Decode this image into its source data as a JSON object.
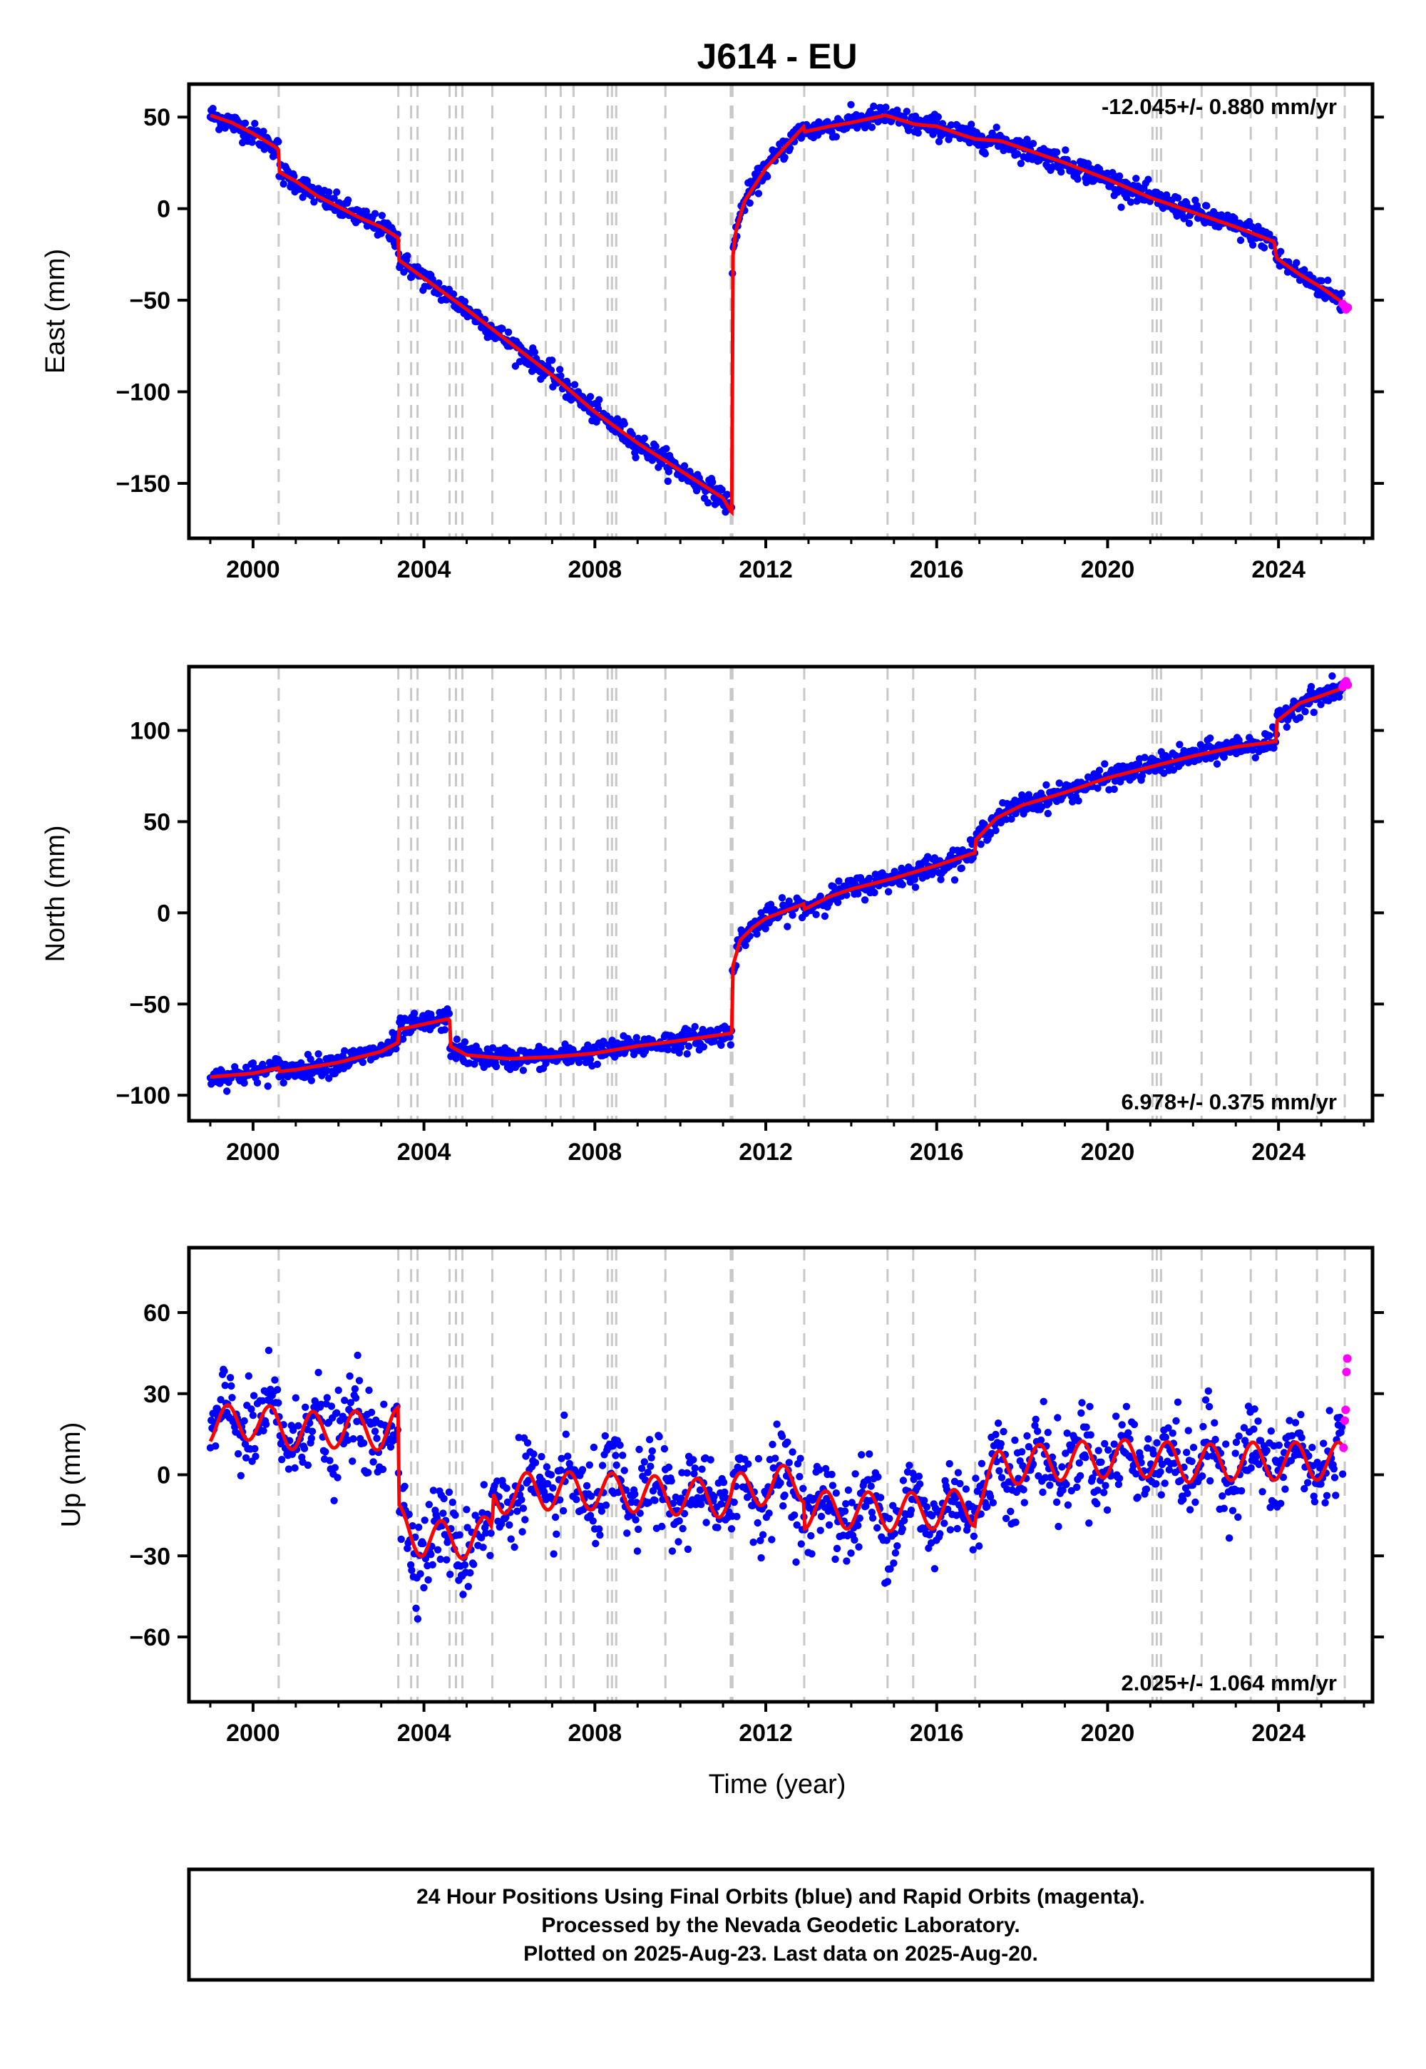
{
  "chart_data": {
    "type": "scatter",
    "title": "J614 - EU",
    "xlabel": "Time (year)",
    "xlim": [
      1998.5,
      2026.2
    ],
    "xticks": [
      2000,
      2004,
      2008,
      2012,
      2016,
      2020,
      2024
    ],
    "step_epochs": [
      2000.6,
      2003.4,
      2003.7,
      2003.85,
      2004.6,
      2004.75,
      2004.9,
      2005.6,
      2006.85,
      2007.2,
      2007.5,
      2008.3,
      2008.4,
      2008.5,
      2009.65,
      2011.18,
      2011.22,
      2012.9,
      2014.85,
      2015.45,
      2016.9,
      2021.05,
      2021.15,
      2021.25,
      2022.2,
      2023.35,
      2023.95,
      2024.9,
      2025.55
    ],
    "series_colors": {
      "final_orbits": "#0000ff",
      "rapid_orbits": "#ff00ff",
      "model": "#ff0000",
      "steps": "#c8c8c8"
    },
    "panels": [
      {
        "component": "east",
        "ylabel": "East (mm)",
        "ylim": [
          -180,
          68
        ],
        "yticks": [
          50,
          0,
          -50,
          -100,
          -150
        ],
        "rate_text": "-12.045+/- 0.880 mm/yr",
        "rate_position": "top-right",
        "noise_mm": 3,
        "seasonal_mm": 0,
        "model": {
          "x": [
            1999.0,
            1999.5,
            2000.0,
            2000.5,
            2000.6,
            2000.61,
            2001.0,
            2001.5,
            2002.0,
            2002.5,
            2003.0,
            2003.4,
            2003.41,
            2004.0,
            2005.0,
            2006.0,
            2007.0,
            2008.0,
            2009.0,
            2010.0,
            2011.0,
            2011.2,
            2011.21,
            2011.22,
            2011.3,
            2011.5,
            2012.0,
            2012.5,
            2012.9,
            2012.91,
            2013.5,
            2014.0,
            2014.8,
            2015.5,
            2016.0,
            2016.5,
            2016.9,
            2017.5,
            2018.0,
            2019.0,
            2020.0,
            2021.0,
            2022.0,
            2023.0,
            2023.9,
            2023.95,
            2024.5,
            2025.0,
            2025.6
          ],
          "y": [
            51,
            47,
            41,
            34,
            32,
            20,
            15,
            7,
            1,
            -5,
            -10,
            -16,
            -28,
            -38,
            -55,
            -73,
            -91,
            -111,
            -128,
            -143,
            -158,
            -166,
            -165,
            -28,
            -12,
            4,
            22,
            35,
            45,
            42,
            45,
            47,
            51,
            46,
            45,
            41,
            38,
            37,
            33,
            25,
            16,
            6,
            -2,
            -10,
            -18,
            -27,
            -36,
            -43,
            -53
          ]
        },
        "rapid": {
          "x": [
            2025.5,
            2025.54,
            2025.58,
            2025.62
          ],
          "y": [
            -52,
            -53,
            -55,
            -54
          ]
        }
      },
      {
        "component": "north",
        "ylabel": "North (mm)",
        "ylim": [
          -114,
          135
        ],
        "yticks": [
          100,
          50,
          0,
          -50,
          -100
        ],
        "rate_text": "6.978+/- 0.375 mm/yr",
        "rate_position": "bottom-right",
        "noise_mm": 3,
        "seasonal_mm": 0,
        "model": {
          "x": [
            1999.0,
            2000.0,
            2000.6,
            2000.61,
            2001.0,
            2002.0,
            2003.0,
            2003.4,
            2003.41,
            2004.0,
            2004.6,
            2004.61,
            2005.0,
            2006.0,
            2007.0,
            2008.0,
            2009.0,
            2010.0,
            2011.2,
            2011.21,
            2011.22,
            2011.4,
            2011.7,
            2012.0,
            2012.9,
            2012.91,
            2013.5,
            2014.0,
            2015.0,
            2016.0,
            2016.9,
            2016.91,
            2017.0,
            2017.4,
            2018.0,
            2019.0,
            2020.0,
            2021.0,
            2022.0,
            2023.0,
            2023.95,
            2023.96,
            2024.5,
            2025.0,
            2025.6
          ],
          "y": [
            -90,
            -88,
            -85,
            -87,
            -86,
            -82,
            -76,
            -71,
            -64,
            -61,
            -58,
            -73,
            -78,
            -80,
            -79,
            -77,
            -73,
            -70,
            -66,
            -64,
            -30,
            -15,
            -8,
            -3,
            5,
            2,
            9,
            13,
            19,
            26,
            33,
            40,
            42,
            52,
            59,
            66,
            74,
            80,
            86,
            91,
            94,
            105,
            115,
            119,
            124
          ]
        },
        "rapid": {
          "x": [
            2025.5,
            2025.54,
            2025.58,
            2025.62
          ],
          "y": [
            124,
            126,
            127,
            125
          ]
        }
      },
      {
        "component": "up",
        "ylabel": "Up (mm)",
        "ylim": [
          -84,
          84
        ],
        "yticks": [
          60,
          30,
          0,
          -30,
          -60
        ],
        "rate_text": "2.025+/- 1.064 mm/yr",
        "rate_position": "bottom-right",
        "noise_mm": 8,
        "seasonal_mm": 7,
        "model": {
          "x": [
            1999.0,
            2000.0,
            2001.0,
            2002.0,
            2003.0,
            2003.4,
            2003.41,
            2004.0,
            2005.0,
            2005.6,
            2005.61,
            2006.5,
            2008.0,
            2010.0,
            2011.2,
            2011.21,
            2012.0,
            2012.9,
            2012.91,
            2014.0,
            2015.0,
            2016.9,
            2016.91,
            2017.5,
            2019.0,
            2020.0,
            2021.0,
            2022.0,
            2023.0,
            2024.0,
            2025.6
          ],
          "y": [
            18,
            20,
            16,
            17,
            16,
            18,
            -18,
            -24,
            -24,
            -22,
            -8,
            -6,
            -6,
            -8,
            -9,
            -7,
            -4,
            -3,
            -13,
            -13,
            -14,
            -12,
            -8,
            3,
            5,
            6,
            6,
            4,
            5,
            5,
            5
          ]
        },
        "rapid": {
          "x": [
            2025.52,
            2025.55,
            2025.57,
            2025.59,
            2025.61
          ],
          "y": [
            10,
            20,
            24,
            38,
            43
          ]
        }
      }
    ]
  },
  "footer": {
    "line1": "24 Hour Positions Using Final Orbits (blue) and Rapid Orbits (magenta).",
    "line2": "Processed by the Nevada Geodetic Laboratory.",
    "line3": "Plotted on 2025-Aug-23. Last data on 2025-Aug-20."
  }
}
